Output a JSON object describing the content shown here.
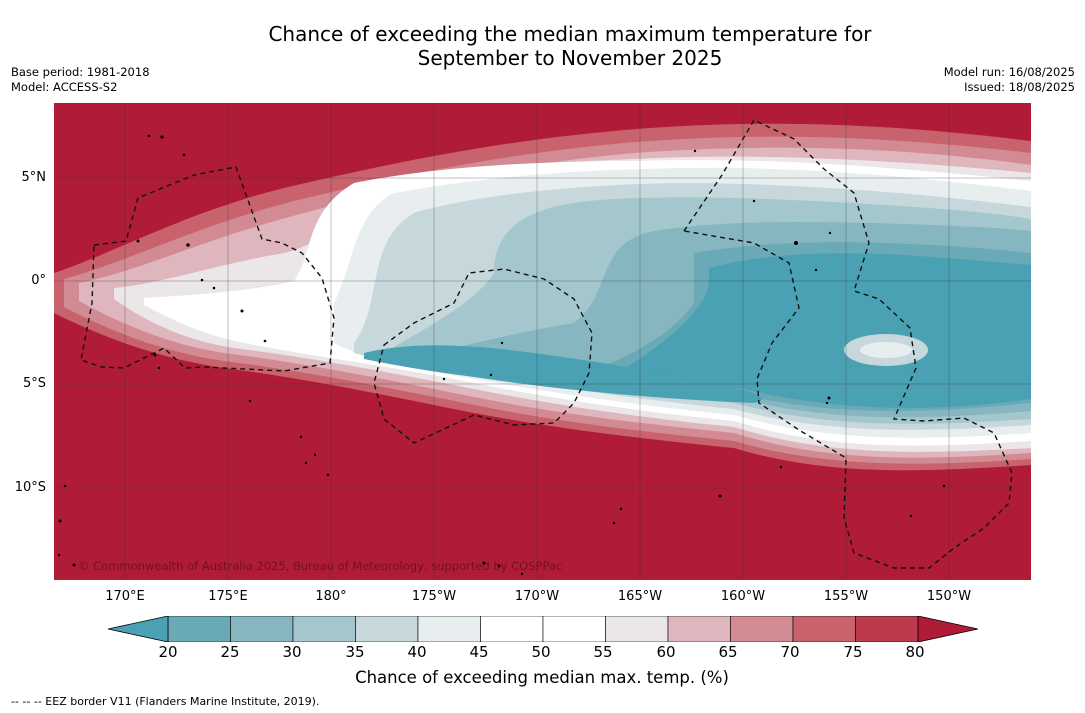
{
  "title": {
    "line1": "Chance of exceeding the median maximum temperature for",
    "line2": "September to November 2025"
  },
  "meta_left": {
    "base_period": "Base period: 1981-2018",
    "model": "Model: ACCESS-S2"
  },
  "meta_right": {
    "model_run": "Model run: 16/08/2025",
    "issued": "Issued: 18/08/2025"
  },
  "map": {
    "lat_labels": [
      "5°N",
      "0°",
      "5°S",
      "10°S"
    ],
    "lon_labels": [
      "170°E",
      "175°E",
      "180°",
      "175°W",
      "170°W",
      "165°W",
      "160°W",
      "155°W",
      "150°W"
    ],
    "copyright": "© Commonwealth of Australia 2025, Bureau of Meteorology, supported by COSPPac"
  },
  "colorbar": {
    "ticks": [
      "20",
      "25",
      "30",
      "35",
      "40",
      "45",
      "50",
      "55",
      "60",
      "65",
      "70",
      "75",
      "80"
    ],
    "colors": [
      "#6aaab7",
      "#86b7c1",
      "#a4c7cd",
      "#c6d8dc",
      "#e8eef0",
      "#ffffff",
      "#ffffff",
      "#ebe6e7",
      "#dfb6bd",
      "#d38b93",
      "#c8636e",
      "#bb3a4b"
    ],
    "low_extend_color": "#4aa1b3",
    "high_extend_color": "#b01c38",
    "label": "Chance of exceeding median max. temp. (%)"
  },
  "footnote": "--  --  -- EEZ border V11 (Flanders Marine Institute, 2019)."
}
